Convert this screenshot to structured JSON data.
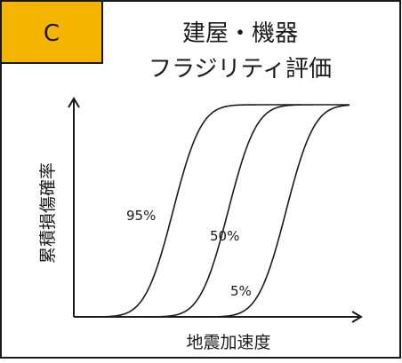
{
  "panel": {
    "badge_letter": "C",
    "title_line1": "建屋・機器",
    "title_line2": "フラジリティ評価"
  },
  "colors": {
    "badge_fill": "#F4B400",
    "line": "#1a1a1a",
    "background": "#ffffff"
  },
  "chart_data": {
    "type": "line",
    "title": "",
    "xlabel": "地震加速度",
    "ylabel": "累積損傷確率",
    "grid": false,
    "legend": "none",
    "series": [
      {
        "name": "95%",
        "median": 0.36,
        "sigma": 0.16
      },
      {
        "name": "50%",
        "median": 0.56,
        "sigma": 0.16
      },
      {
        "name": "5%",
        "median": 0.77,
        "sigma": 0.16
      }
    ],
    "xlim": [
      0,
      1
    ],
    "ylim": [
      0,
      1
    ]
  }
}
